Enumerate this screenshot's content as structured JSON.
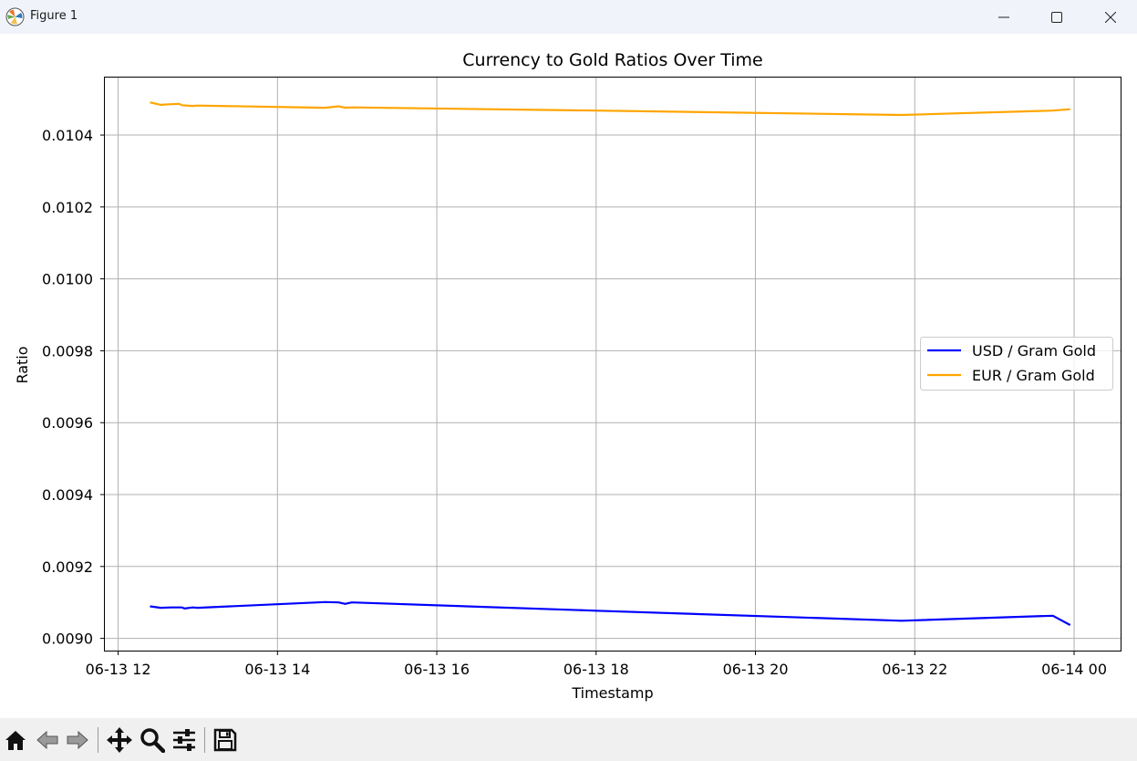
{
  "window": {
    "title": "Figure 1",
    "icon": "matplotlib-logo-icon",
    "controls": [
      "minimize-icon",
      "maximize-icon",
      "close-icon"
    ]
  },
  "toolbar": {
    "buttons": [
      {
        "name": "home-button",
        "icon": "home-icon"
      },
      {
        "name": "back-button",
        "icon": "arrow-left-icon"
      },
      {
        "name": "forward-button",
        "icon": "arrow-right-icon"
      },
      {
        "name": "pan-button",
        "icon": "move-icon"
      },
      {
        "name": "zoom-button",
        "icon": "magnifier-icon"
      },
      {
        "name": "configure-subplots-button",
        "icon": "sliders-icon"
      },
      {
        "name": "save-button",
        "icon": "floppy-disk-icon"
      }
    ]
  },
  "chart_data": {
    "type": "line",
    "title": "Currency to Gold Ratios Over Time",
    "xlabel": "Timestamp",
    "ylabel": "Ratio",
    "grid": true,
    "legend_position": "center-right",
    "xlim": [
      "2024-06-13 11:50",
      "2024-06-14 00:35"
    ],
    "ylim": [
      0.008966,
      0.01056
    ],
    "x_ticks": [
      "06-13 12",
      "06-13 14",
      "06-13 16",
      "06-13 18",
      "06-13 20",
      "06-13 22",
      "06-14 00"
    ],
    "y_ticks": [
      "0.0090",
      "0.0092",
      "0.0094",
      "0.0096",
      "0.0098",
      "0.0100",
      "0.0102",
      "0.0104"
    ],
    "series": [
      {
        "name": "USD / Gram Gold",
        "color": "#0000ff",
        "points": [
          [
            "2024-06-13 12:24",
            0.009089
          ],
          [
            "2024-06-13 12:32",
            0.009085
          ],
          [
            "2024-06-13 12:40",
            0.009086
          ],
          [
            "2024-06-13 12:48",
            0.009086
          ],
          [
            "2024-06-13 12:50",
            0.009083
          ],
          [
            "2024-06-13 12:56",
            0.009086
          ],
          [
            "2024-06-13 13:00",
            0.009085
          ],
          [
            "2024-06-13 14:36",
            0.009101
          ],
          [
            "2024-06-13 14:46",
            0.0091
          ],
          [
            "2024-06-13 14:51",
            0.009096
          ],
          [
            "2024-06-13 14:56",
            0.0091
          ],
          [
            "2024-06-13 18:00",
            0.009077
          ],
          [
            "2024-06-13 21:50",
            0.009049
          ],
          [
            "2024-06-13 23:44",
            0.009063
          ],
          [
            "2024-06-13 23:57",
            0.009037
          ]
        ]
      },
      {
        "name": "EUR / Gram Gold",
        "color": "#ffa500",
        "points": [
          [
            "2024-06-13 12:24",
            0.010491
          ],
          [
            "2024-06-13 12:32",
            0.010484
          ],
          [
            "2024-06-13 12:40",
            0.010486
          ],
          [
            "2024-06-13 12:46",
            0.010487
          ],
          [
            "2024-06-13 12:48",
            0.010483
          ],
          [
            "2024-06-13 12:56",
            0.010481
          ],
          [
            "2024-06-13 13:00",
            0.010482
          ],
          [
            "2024-06-13 14:36",
            0.010476
          ],
          [
            "2024-06-13 14:46",
            0.01048
          ],
          [
            "2024-06-13 14:51",
            0.010476
          ],
          [
            "2024-06-13 14:56",
            0.010477
          ],
          [
            "2024-06-13 18:00",
            0.010468
          ],
          [
            "2024-06-13 21:50",
            0.010456
          ],
          [
            "2024-06-13 23:44",
            0.010468
          ],
          [
            "2024-06-13 23:57",
            0.010472
          ]
        ]
      }
    ]
  }
}
